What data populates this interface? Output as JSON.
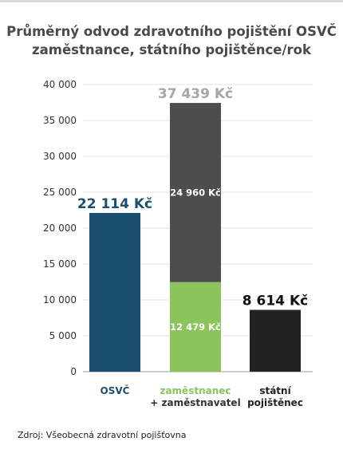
{
  "title": {
    "line1": "Průměrný odvod zdravotního pojištění OSVČ",
    "line2": "zaměstnance, státního pojištěnce/rok"
  },
  "source": "Zdroj: Všeobecná zdravotní pojišťovna",
  "colors": {
    "osvc": "#1b4f72",
    "employee_part": "#8bc45a",
    "employer_part": "#4d4d4d",
    "state": "#222222",
    "total_label": "#a6a6a6",
    "axis_text": "#333333",
    "grid": "#e0e0e0"
  },
  "chart_data": {
    "type": "bar",
    "title": "Průměrný odvod zdravotního pojištění OSVČ zaměstnance, státního pojištěnce/rok",
    "ylim": [
      0,
      40000
    ],
    "yticks": [
      0,
      5000,
      10000,
      15000,
      20000,
      25000,
      30000,
      35000,
      40000
    ],
    "ytick_labels": [
      "0",
      "5 000",
      "10 000",
      "15 000",
      "20 000",
      "25 000",
      "30 000",
      "35 000",
      "40 000"
    ],
    "grid": true,
    "bars": [
      {
        "category": [
          "OSVČ"
        ],
        "category_color": "#1b4f72",
        "total": 22114,
        "total_label": "22 114 Kč",
        "total_label_color": "#1b4f72",
        "segments": [
          {
            "value": 22114,
            "color": "#1b4f72",
            "label": ""
          }
        ]
      },
      {
        "category": [
          "zaměstnanec",
          "+ zaměstnavatel"
        ],
        "category_color": "#8bc45a",
        "category_color_line2": "#333333",
        "total": 37439,
        "total_label": "37 439 Kč",
        "total_label_color": "#a6a6a6",
        "segments": [
          {
            "value": 12479,
            "color": "#8bc45a",
            "label": "12 479 Kč"
          },
          {
            "value": 24960,
            "color": "#4d4d4d",
            "label": "24 960 Kč"
          }
        ]
      },
      {
        "category": [
          "státní",
          "pojištěnec"
        ],
        "category_color": "#222222",
        "total": 8614,
        "total_label": "8 614 Kč",
        "total_label_color": "#111111",
        "segments": [
          {
            "value": 8614,
            "color": "#222222",
            "label": ""
          }
        ]
      }
    ]
  }
}
